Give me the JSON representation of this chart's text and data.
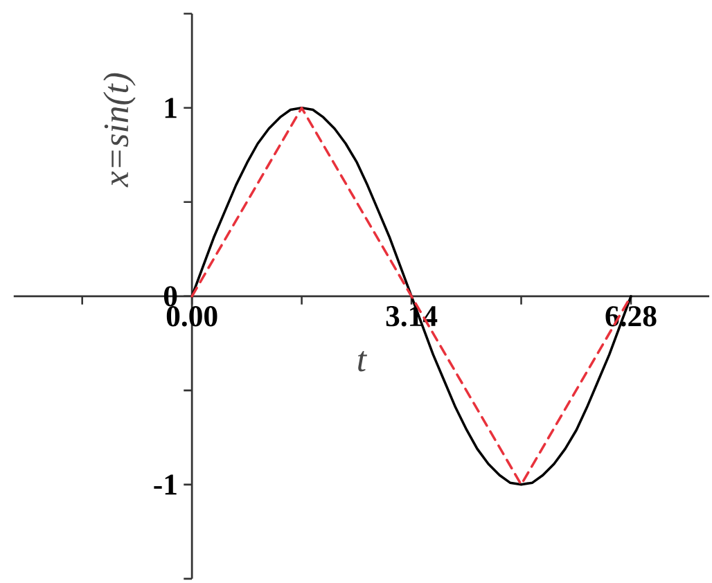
{
  "chart_data": {
    "type": "line",
    "xlabel": "t",
    "ylabel": "x=sin(t)",
    "xlim": [
      -2.55,
      7.4
    ],
    "ylim": [
      -1.5,
      1.5
    ],
    "xticks": [
      {
        "value": -1.57,
        "label": null
      },
      {
        "value": 0,
        "label": "0.00"
      },
      {
        "value": 1.57,
        "label": null
      },
      3.14,
      {
        "value": 4.71,
        "label": null
      },
      6.28
    ],
    "yticks": [
      {
        "value": -1.5,
        "label": null
      },
      -1,
      {
        "value": -0.5,
        "label": null
      },
      0,
      {
        "value": 0.5,
        "label": null
      },
      1,
      {
        "value": 1.5,
        "label": null
      }
    ],
    "grid": false,
    "series": [
      {
        "color": "#000000",
        "line_style": "solid",
        "x": [
          0,
          0.16,
          0.31,
          0.47,
          0.63,
          0.79,
          0.94,
          1.1,
          1.26,
          1.41,
          1.57,
          1.73,
          1.88,
          2.04,
          2.2,
          2.36,
          2.51,
          2.67,
          2.83,
          2.98,
          3.14,
          3.3,
          3.45,
          3.61,
          3.77,
          3.93,
          4.08,
          4.24,
          4.4,
          4.55,
          4.71,
          4.87,
          5.02,
          5.18,
          5.34,
          5.5,
          5.65,
          5.81,
          5.97,
          6.12,
          6.28
        ],
        "values": [
          0,
          0.16,
          0.31,
          0.45,
          0.59,
          0.71,
          0.81,
          0.89,
          0.95,
          0.99,
          1,
          0.99,
          0.95,
          0.89,
          0.81,
          0.71,
          0.59,
          0.45,
          0.31,
          0.16,
          0,
          -0.16,
          -0.31,
          -0.45,
          -0.59,
          -0.71,
          -0.81,
          -0.89,
          -0.95,
          -0.99,
          -1,
          -0.99,
          -0.95,
          -0.89,
          -0.81,
          -0.71,
          -0.59,
          -0.45,
          -0.31,
          -0.16,
          0
        ]
      },
      {
        "color": "#e8323c",
        "line_style": "dashed",
        "x": [
          0,
          1.57,
          3.14,
          4.71,
          6.28
        ],
        "values": [
          0,
          1,
          0,
          -1,
          0
        ]
      }
    ]
  }
}
